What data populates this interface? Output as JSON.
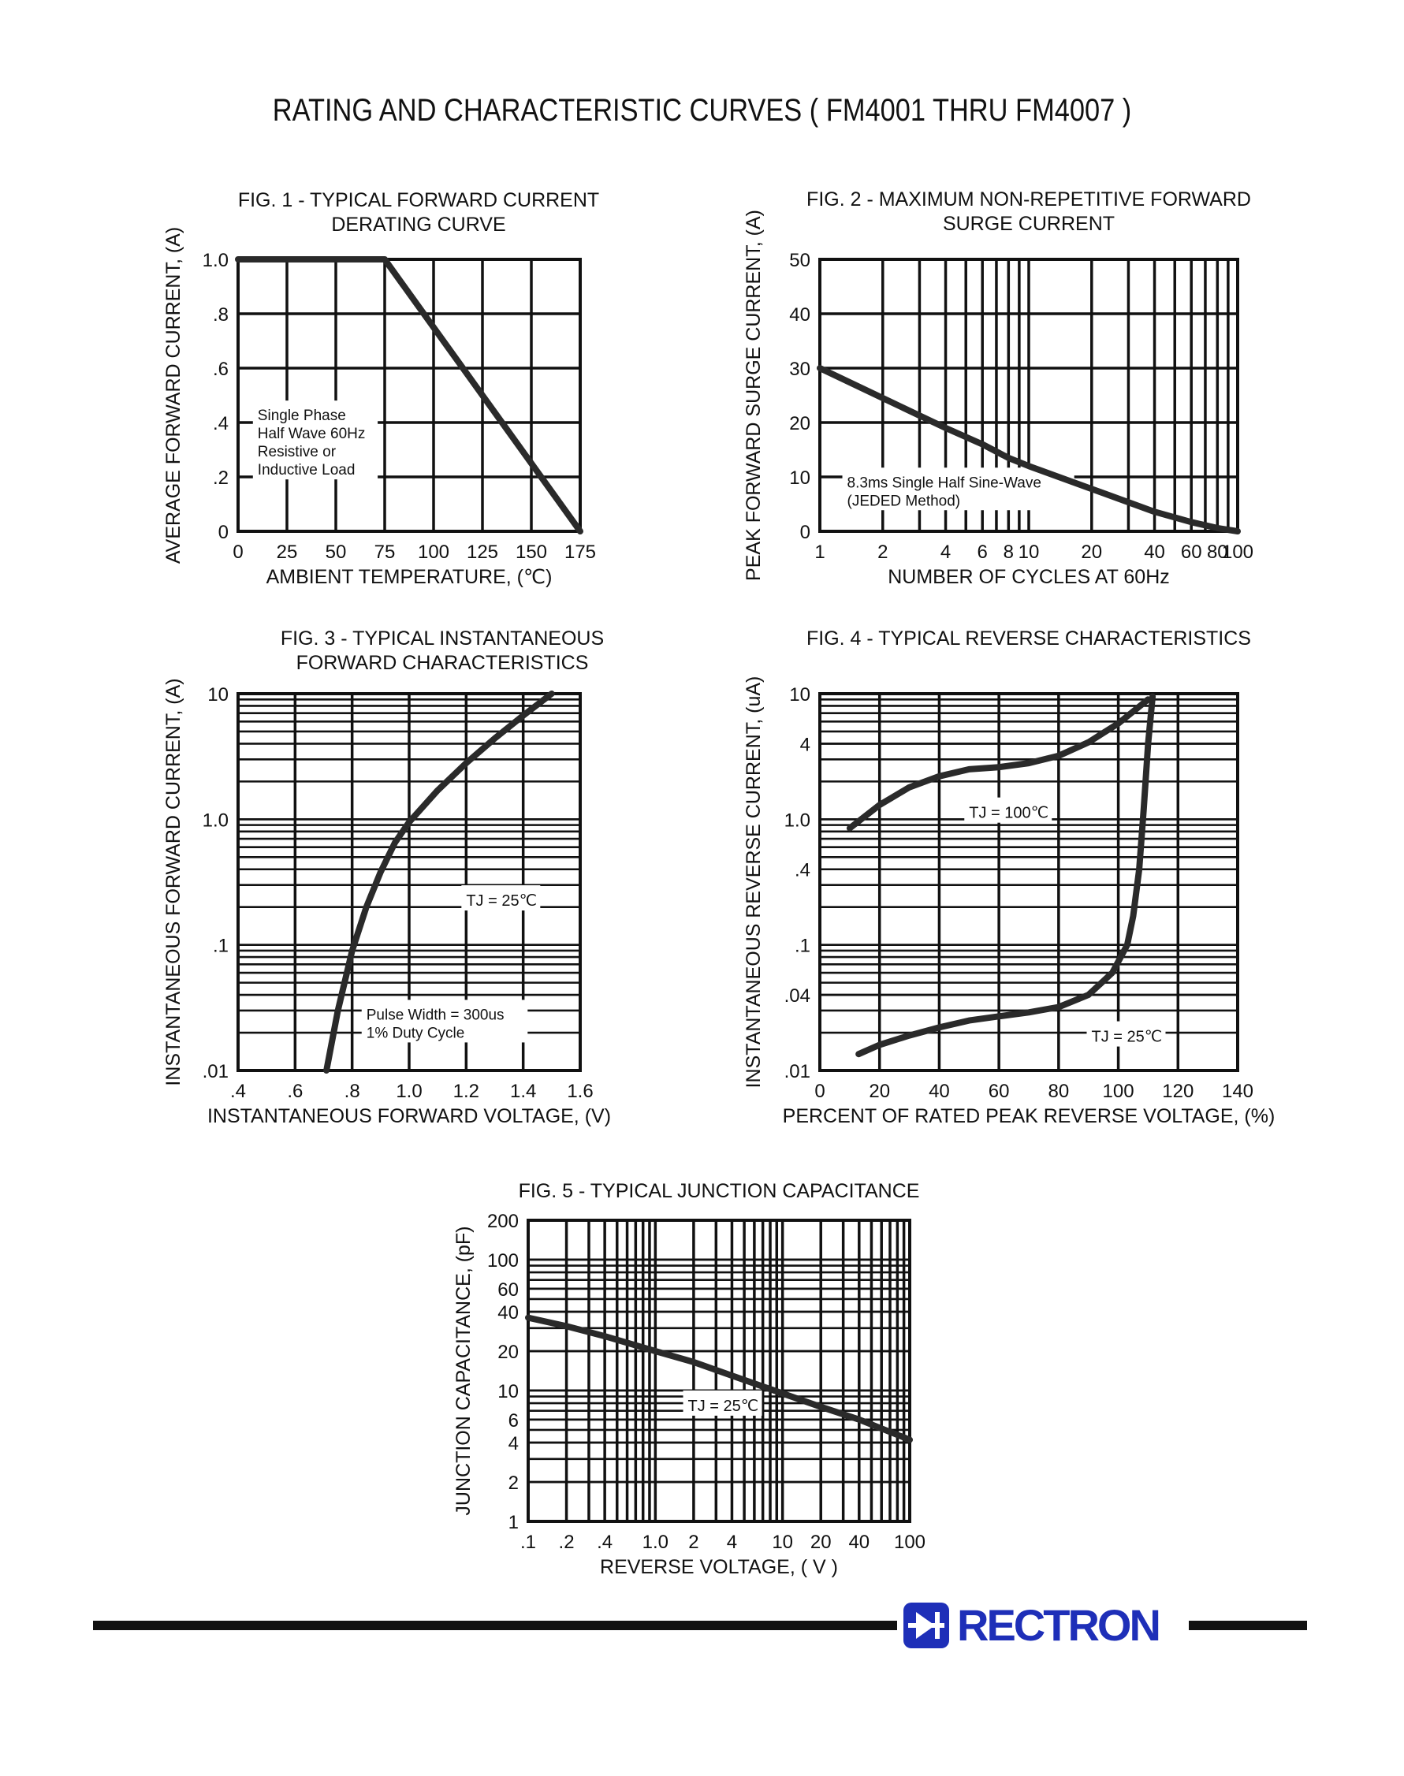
{
  "page_title": "RATING AND CHARACTERISTIC CURVES ( FM4001 THRU FM4007 )",
  "brand": {
    "name": "RECTRON",
    "color": "#1e2fb8"
  },
  "chart_data": [
    {
      "id": "fig1",
      "type": "line",
      "title": [
        "FIG. 1 - TYPICAL FORWARD CURRENT",
        "DERATING CURVE"
      ],
      "xlabel": "AMBIENT TEMPERATURE, (℃)",
      "ylabel": "AVERAGE FORWARD CURRENT, (A)",
      "xscale": "linear",
      "yscale": "linear",
      "xlim": [
        0,
        175
      ],
      "ylim": [
        0,
        1.0
      ],
      "xticks": [
        0,
        25,
        50,
        75,
        100,
        125,
        150,
        175
      ],
      "xtick_labels": [
        "0",
        "25",
        "50",
        "75",
        "100",
        "125",
        "150",
        "175"
      ],
      "yticks": [
        0,
        0.2,
        0.4,
        0.6,
        0.8,
        1.0
      ],
      "ytick_labels": [
        "0",
        ".2",
        ".4",
        ".6",
        ".8",
        "1.0"
      ],
      "grid": true,
      "series": [
        {
          "x": [
            0,
            75,
            175
          ],
          "y": [
            1.0,
            1.0,
            0
          ]
        }
      ],
      "annotations": [
        {
          "lines": [
            "Single Phase",
            "Half Wave 60Hz",
            "Resistive or",
            "Inductive Load"
          ],
          "x": 10,
          "y": 0.33
        }
      ]
    },
    {
      "id": "fig2",
      "type": "line",
      "title": [
        "FIG. 2 - MAXIMUM NON-REPETITIVE FORWARD",
        "SURGE CURRENT"
      ],
      "xlabel": "NUMBER OF CYCLES AT 60Hz",
      "ylabel": "PEAK FORWARD SURGE CURRENT, (A)",
      "xscale": "log",
      "yscale": "linear",
      "xlim": [
        1,
        100
      ],
      "ylim": [
        0,
        50
      ],
      "xticks": [
        1,
        2,
        4,
        6,
        8,
        10,
        20,
        40,
        60,
        80,
        100
      ],
      "xtick_labels": [
        "1",
        "2",
        "4",
        "6",
        "8",
        "10",
        "20",
        "40",
        "60",
        "80",
        "100"
      ],
      "yticks": [
        0,
        10,
        20,
        30,
        40,
        50
      ],
      "ytick_labels": [
        "0",
        "10",
        "20",
        "30",
        "40",
        "50"
      ],
      "grid": true,
      "series": [
        {
          "x": [
            1,
            2,
            4,
            6,
            8,
            10,
            20,
            40,
            60,
            80,
            100
          ],
          "y": [
            30,
            24.5,
            19,
            16,
            13.5,
            12,
            7.8,
            3.6,
            1.7,
            0.6,
            0
          ]
        }
      ],
      "annotations": [
        {
          "lines": [
            "8.3ms Single Half Sine-Wave",
            "(JEDED Method)"
          ],
          "x": 1.35,
          "y": 7.5
        }
      ]
    },
    {
      "id": "fig3",
      "type": "line",
      "title": [
        "FIG. 3 - TYPICAL INSTANTANEOUS",
        "FORWARD CHARACTERISTICS"
      ],
      "xlabel": "INSTANTANEOUS FORWARD VOLTAGE, (V)",
      "ylabel": "INSTANTANEOUS FORWARD CURRENT, (A)",
      "xscale": "linear",
      "yscale": "log",
      "xlim": [
        0.4,
        1.6
      ],
      "ylim": [
        0.01,
        10
      ],
      "xticks": [
        0.4,
        0.6,
        0.8,
        1.0,
        1.2,
        1.4,
        1.6
      ],
      "xtick_labels": [
        ".4",
        ".6",
        ".8",
        "1.0",
        "1.2",
        "1.4",
        "1.6"
      ],
      "yticks": [
        0.01,
        0.1,
        1.0,
        10
      ],
      "ytick_labels": [
        ".01",
        ".1",
        "1.0",
        "10"
      ],
      "grid": true,
      "series": [
        {
          "x": [
            0.71,
            0.75,
            0.8,
            0.85,
            0.9,
            0.95,
            1.0,
            1.1,
            1.2,
            1.3,
            1.4,
            1.5
          ],
          "y": [
            0.01,
            0.03,
            0.09,
            0.2,
            0.38,
            0.65,
            0.95,
            1.7,
            2.8,
            4.4,
            6.7,
            10
          ]
        }
      ],
      "annotations": [
        {
          "text": "TJ = 25℃",
          "x": 1.2,
          "y": 0.23
        },
        {
          "lines": [
            "Pulse Width = 300us",
            "1% Duty Cycle"
          ],
          "x": 0.85,
          "y": 0.024
        }
      ]
    },
    {
      "id": "fig4",
      "type": "line",
      "title": [
        "FIG. 4 - TYPICAL REVERSE CHARACTERISTICS"
      ],
      "xlabel": "PERCENT OF RATED PEAK REVERSE VOLTAGE, (%)",
      "ylabel": "INSTANTANEOUS REVERSE CURRENT, (uA)",
      "xscale": "linear",
      "yscale": "log",
      "xlim": [
        0,
        140
      ],
      "ylim": [
        0.01,
        10
      ],
      "xticks": [
        0,
        20,
        40,
        60,
        80,
        100,
        120,
        140
      ],
      "xtick_labels": [
        "0",
        "20",
        "40",
        "60",
        "80",
        "100",
        "120",
        "140"
      ],
      "yticks": [
        0.01,
        0.04,
        0.1,
        0.4,
        1.0,
        4,
        10
      ],
      "ytick_labels": [
        ".01",
        ".04",
        ".1",
        ".4",
        "1.0",
        "4",
        "10"
      ],
      "grid": true,
      "series": [
        {
          "name": "TJ = 100℃",
          "x": [
            10,
            20,
            30,
            40,
            50,
            60,
            70,
            80,
            90,
            100,
            110
          ],
          "y": [
            0.85,
            1.3,
            1.8,
            2.2,
            2.5,
            2.6,
            2.8,
            3.2,
            4.1,
            5.8,
            9.0
          ]
        },
        {
          "name": "TJ = 25℃",
          "x": [
            13,
            20,
            30,
            40,
            50,
            60,
            70,
            80,
            90,
            98,
            103,
            105,
            107,
            108.5,
            110,
            111.5
          ],
          "y": [
            0.0135,
            0.016,
            0.019,
            0.022,
            0.025,
            0.027,
            0.029,
            0.032,
            0.04,
            0.06,
            0.1,
            0.17,
            0.4,
            1.2,
            4,
            9.5
          ]
        }
      ],
      "annotations": [
        {
          "text": "TJ = 100℃",
          "x": 50,
          "y": 1.15
        },
        {
          "text": "TJ = 25℃",
          "x": 91,
          "y": 0.019
        }
      ]
    },
    {
      "id": "fig5",
      "type": "line",
      "title": [
        "FIG. 5 - TYPICAL JUNCTION CAPACITANCE"
      ],
      "xlabel": "REVERSE VOLTAGE, ( V )",
      "ylabel": "JUNCTION CAPACITANCE, (pF)",
      "xscale": "log",
      "yscale": "log",
      "xlim": [
        0.1,
        100
      ],
      "ylim": [
        1,
        200
      ],
      "xticks": [
        0.1,
        0.2,
        0.4,
        1.0,
        2,
        4,
        10,
        20,
        40,
        100
      ],
      "xtick_labels": [
        ".1",
        ".2",
        ".4",
        "1.0",
        "2",
        "4",
        "10",
        "20",
        "40",
        "100"
      ],
      "yticks": [
        1,
        2,
        4,
        6,
        10,
        20,
        40,
        60,
        100,
        200
      ],
      "ytick_labels": [
        "1",
        "2",
        "4",
        "6",
        "10",
        "20",
        "40",
        "60",
        "100",
        "200"
      ],
      "grid": true,
      "series": [
        {
          "x": [
            0.1,
            0.2,
            0.4,
            1,
            2,
            4,
            10,
            20,
            40,
            100
          ],
          "y": [
            36,
            31,
            26,
            20,
            16.5,
            13,
            9.5,
            7.5,
            6,
            4.2
          ]
        }
      ],
      "annotations": [
        {
          "text": "TJ = 25℃",
          "x": 1.8,
          "y": 7.8
        }
      ]
    }
  ]
}
